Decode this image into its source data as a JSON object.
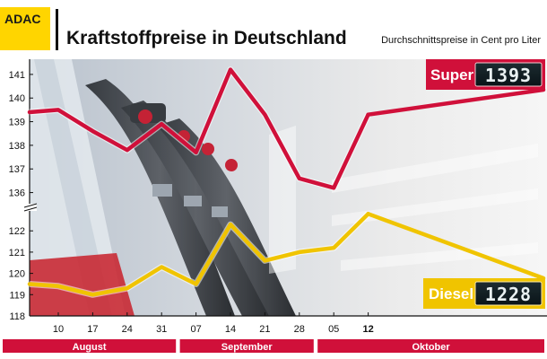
{
  "brand": {
    "logo_text": "ADAC",
    "logo_bg": "#ffd500",
    "logo_fg": "#1a1a1a"
  },
  "header": {
    "title": "Kraftstoffpreise in Deutschland",
    "subtitle": "Durchschnittspreise in Cent pro Liter"
  },
  "badges": {
    "super": {
      "label": "Super",
      "display": "1393",
      "color": "#d0103a"
    },
    "diesel": {
      "label": "Diesel",
      "display": "1228",
      "color": "#f0c400"
    }
  },
  "months": [
    {
      "label": "August",
      "from": "10",
      "to": "31"
    },
    {
      "label": "September",
      "from": "07",
      "to": "28"
    },
    {
      "label": "Oktober",
      "from": "05",
      "to": "12"
    }
  ],
  "chart_data": {
    "type": "line",
    "title": "Kraftstoffpreise in Deutschland",
    "subtitle": "Durchschnittspreise in Cent pro Liter",
    "x": [
      "10",
      "17",
      "24",
      "31",
      "07",
      "14",
      "21",
      "28",
      "05",
      "12"
    ],
    "x_highlight": "12",
    "month_groups": [
      {
        "label": "August",
        "x": [
          "10",
          "17",
          "24",
          "31"
        ]
      },
      {
        "label": "September",
        "x": [
          "07",
          "14",
          "21",
          "28"
        ]
      },
      {
        "label": "Oktober",
        "x": [
          "05",
          "12"
        ]
      }
    ],
    "y_axis_broken": true,
    "upper_axis": {
      "ticks": [
        136,
        137,
        138,
        139,
        140,
        141
      ],
      "ylim": [
        135.3,
        141.3
      ]
    },
    "lower_axis": {
      "ticks": [
        118,
        119,
        120,
        121,
        122
      ],
      "ylim": [
        118,
        122.6
      ]
    },
    "series": [
      {
        "name": "Super",
        "color": "#d0103a",
        "axis": "upper",
        "start": 139.4,
        "values": [
          139.5,
          138.6,
          137.8,
          138.9,
          137.7,
          141.2,
          139.3,
          136.6,
          136.2,
          139.3
        ]
      },
      {
        "name": "Diesel",
        "color": "#f0c400",
        "axis": "lower",
        "start": 119.5,
        "values": [
          119.4,
          119.0,
          119.3,
          120.3,
          119.5,
          122.3,
          120.6,
          121.0,
          121.2,
          122.8
        ]
      }
    ],
    "grid": false,
    "legend": "right"
  }
}
